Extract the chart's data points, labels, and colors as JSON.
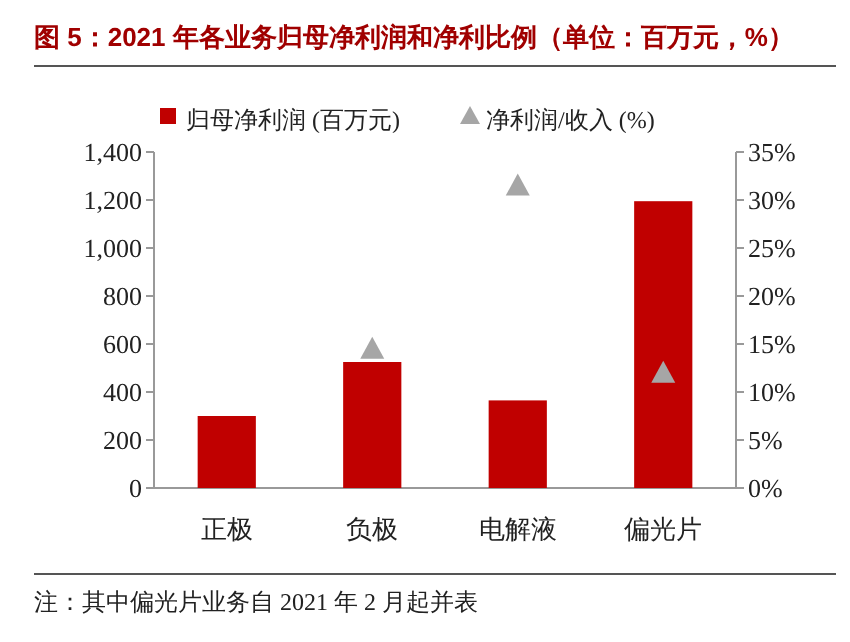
{
  "chart_data": {
    "type": "bar",
    "title": "图 5：2021 年各业务归母净利润和净利比例（单位：百万元，%）",
    "categories": [
      "正极",
      "负极",
      "电解液",
      "偏光片"
    ],
    "series": [
      {
        "name": "归母净利润 (百万元)",
        "color": "#c00000",
        "values": [
          300,
          525,
          365,
          1195
        ]
      },
      {
        "name": "净利润/收入 (%)",
        "type": "scatter",
        "axis": "y2",
        "marker": "triangle",
        "color": "#a6a6a6",
        "values": [
          null,
          14.5,
          31.5,
          12
        ]
      }
    ],
    "ylim": [
      0,
      1400
    ],
    "yticks": [
      {
        "value": 0,
        "label": "0"
      },
      {
        "value": 200,
        "label": "200"
      },
      {
        "value": 400,
        "label": "400"
      },
      {
        "value": 600,
        "label": "600"
      },
      {
        "value": 800,
        "label": "800"
      },
      {
        "value": 1000,
        "label": "1,000"
      },
      {
        "value": 1200,
        "label": "1,200"
      },
      {
        "value": 1400,
        "label": "1,400"
      }
    ],
    "y2lim": [
      0,
      35
    ],
    "y2ticks": [
      {
        "value": 0,
        "label": "0%"
      },
      {
        "value": 5,
        "label": "5%"
      },
      {
        "value": 10,
        "label": "10%"
      },
      {
        "value": 15,
        "label": "15%"
      },
      {
        "value": 20,
        "label": "20%"
      },
      {
        "value": 25,
        "label": "25%"
      },
      {
        "value": 30,
        "label": "30%"
      },
      {
        "value": 35,
        "label": "35%"
      }
    ],
    "legend": "top",
    "grid": false,
    "annotations": [
      "注：其中偏光片业务自 2021 年 2 月起并表"
    ]
  }
}
